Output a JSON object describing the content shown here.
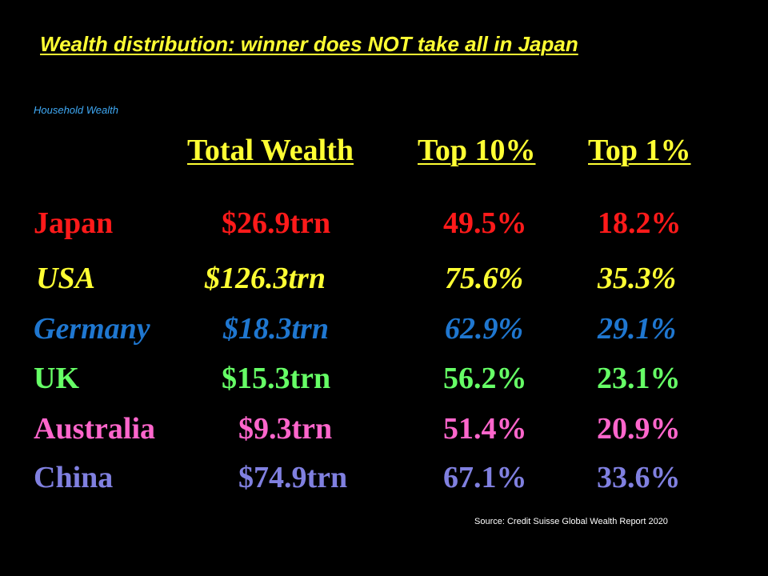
{
  "title": "Wealth distribution: winner does NOT take all in Japan",
  "subtitle": "Household Wealth",
  "source": "Source: Credit Suisse Global Wealth Report 2020",
  "chart_data": {
    "type": "table",
    "columns": [
      "Total Wealth",
      "Top 10%",
      "Top 1%"
    ],
    "rows": [
      {
        "country": "Japan",
        "total": "$26.9trn",
        "top10": "49.5%",
        "top1": "18.2%",
        "color": "#FF1A1A",
        "italic": false
      },
      {
        "country": "USA",
        "total": "$126.3trn",
        "top10": "75.6%",
        "top1": "35.3%",
        "color": "#FFFF33",
        "italic": true
      },
      {
        "country": "Germany",
        "total": "$18.3trn",
        "top10": "62.9%",
        "top1": "29.1%",
        "color": "#1F77D0",
        "italic": true
      },
      {
        "country": "UK",
        "total": "$15.3trn",
        "top10": "56.2%",
        "top1": "23.1%",
        "color": "#66FF66",
        "italic": false
      },
      {
        "country": "Australia",
        "total": "$9.3trn",
        "top10": "51.4%",
        "top1": "20.9%",
        "color": "#FF66CC",
        "italic": false
      },
      {
        "country": "China",
        "total": "$74.9trn",
        "top10": "67.1%",
        "top1": "33.6%",
        "color": "#8080E0",
        "italic": false
      }
    ]
  }
}
